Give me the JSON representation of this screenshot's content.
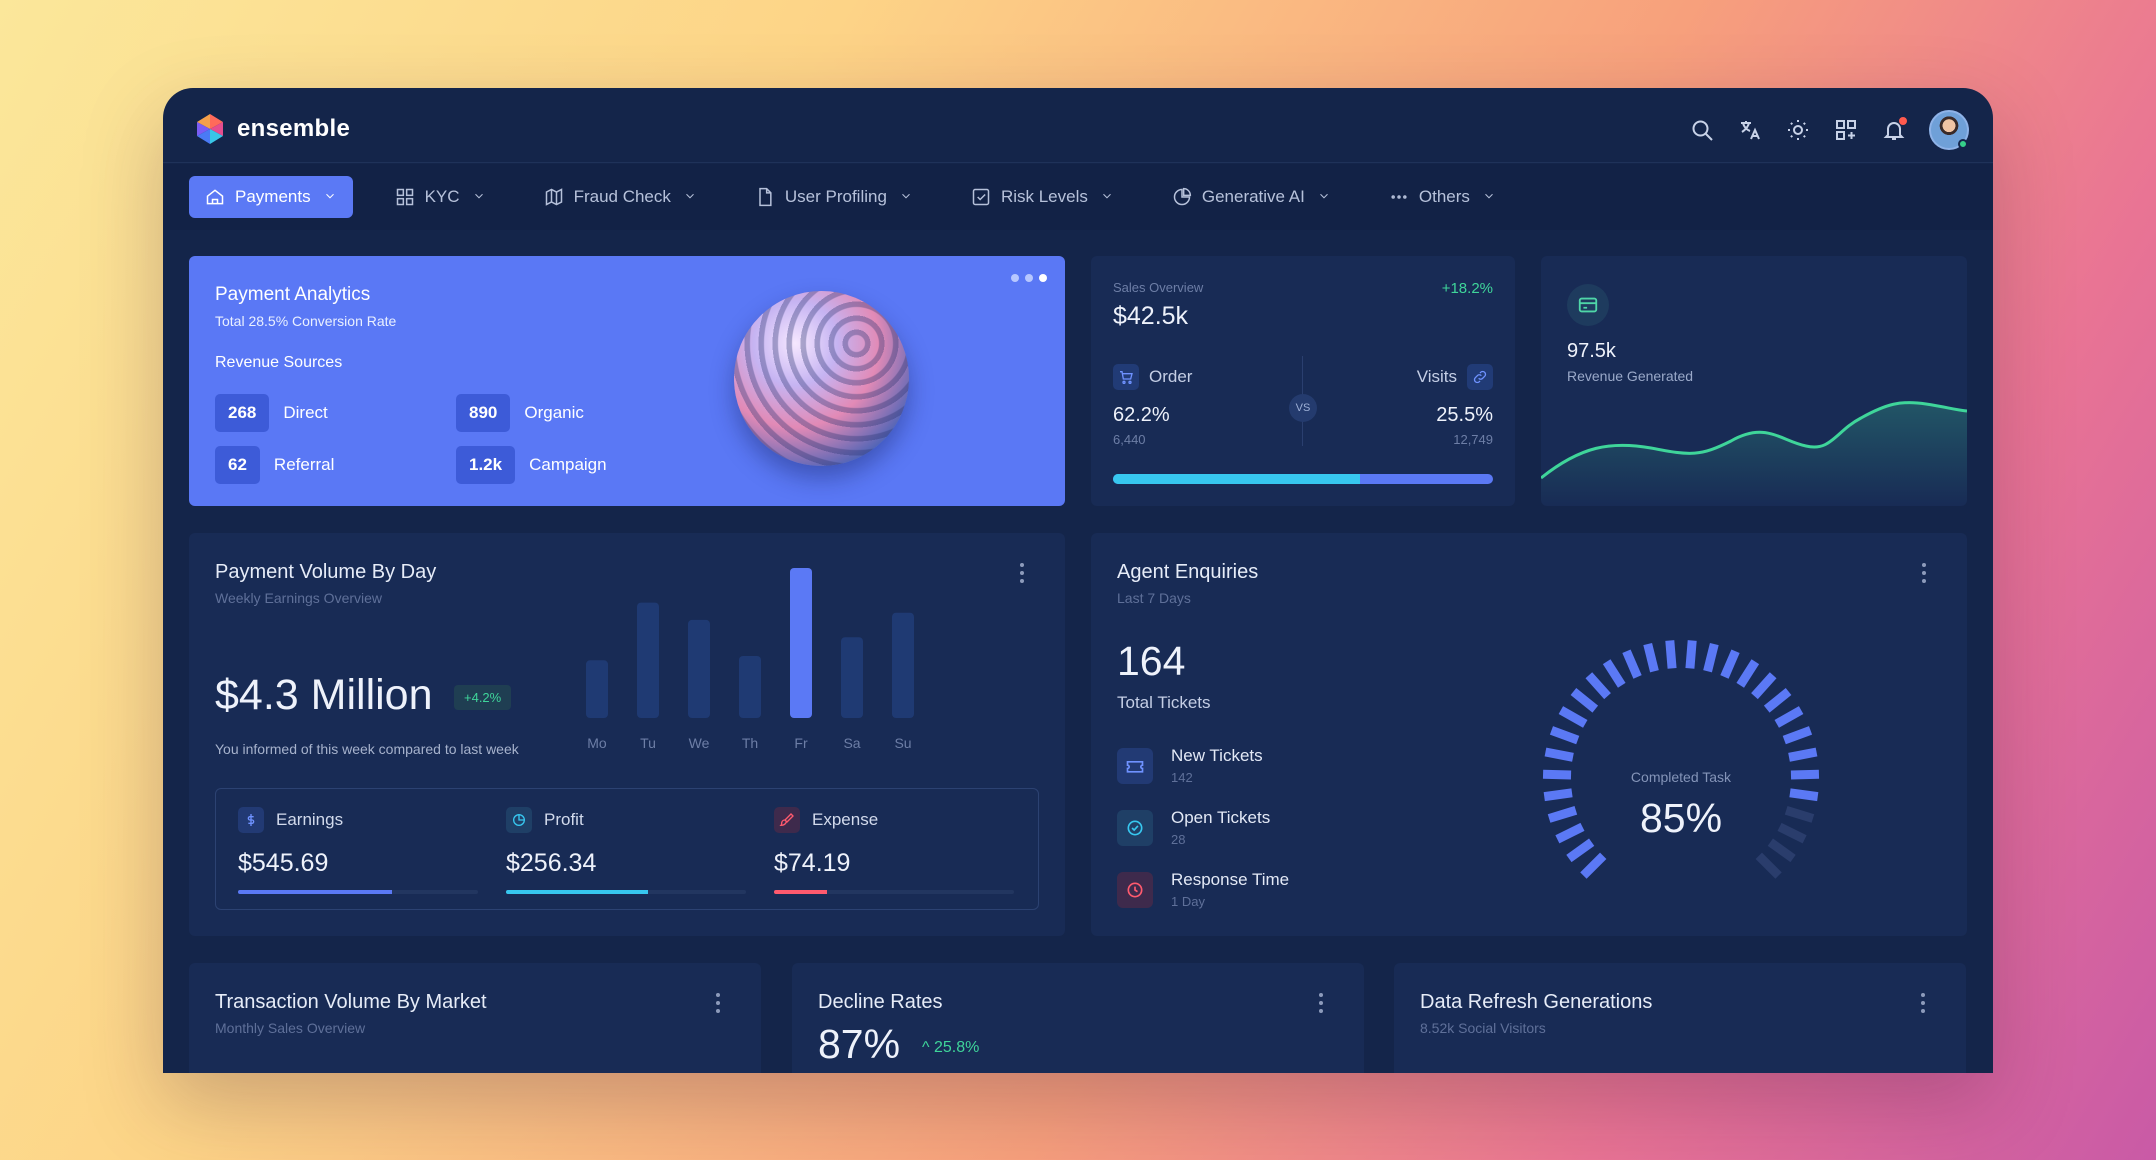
{
  "app": {
    "name": "ensemble",
    "colors": {
      "accent": "#5b79f5",
      "background": "#14254a",
      "card": "#182b55",
      "success": "#3fd59a",
      "danger": "#ff5a6e",
      "cyan": "#37c7ef"
    }
  },
  "topbar": {
    "icons": [
      "search-icon",
      "translate-icon",
      "sun-icon",
      "apps-grid-icon",
      "bell-icon",
      "user-avatar"
    ]
  },
  "nav": {
    "items": [
      {
        "label": "Payments",
        "icon": "home-icon",
        "active": true
      },
      {
        "label": "KYC",
        "icon": "grid-icon",
        "active": false
      },
      {
        "label": "Fraud Check",
        "icon": "map-icon",
        "active": false
      },
      {
        "label": "User Profiling",
        "icon": "file-icon",
        "active": false
      },
      {
        "label": "Risk Levels",
        "icon": "checkbox-icon",
        "active": false
      },
      {
        "label": "Generative AI",
        "icon": "pie-chart-icon",
        "active": false
      },
      {
        "label": "Others",
        "icon": "dots-icon",
        "active": false
      }
    ]
  },
  "payment_analytics": {
    "title": "Payment Analytics",
    "subtitle": "Total 28.5% Conversion Rate",
    "sources_title": "Revenue Sources",
    "sources": [
      {
        "value": "268",
        "label": "Direct"
      },
      {
        "value": "890",
        "label": "Organic"
      },
      {
        "value": "62",
        "label": "Referral"
      },
      {
        "value": "1.2k",
        "label": "Campaign"
      }
    ],
    "carousel_active_index": 2
  },
  "sales_overview": {
    "label": "Sales Overview",
    "value": "$42.5k",
    "change": "+18.2%",
    "order": {
      "label": "Order",
      "percent": "62.2%",
      "count": "6,440"
    },
    "visits": {
      "label": "Visits",
      "percent": "25.5%",
      "count": "12,749"
    },
    "vs": "VS",
    "order_share": 0.65
  },
  "revenue": {
    "value": "97.5k",
    "label": "Revenue Generated"
  },
  "payment_volume": {
    "title": "Payment Volume By Day",
    "subtitle": "Weekly Earnings Overview",
    "amount": "$4.3 Million",
    "change": "+4.2%",
    "note": "You informed of this week compared to last week",
    "chart_data": {
      "type": "bar",
      "categories": [
        "Mo",
        "Tu",
        "We",
        "Th",
        "Fr",
        "Sa",
        "Su"
      ],
      "values": [
        40,
        80,
        68,
        43,
        104,
        56,
        73
      ],
      "highlight": "Fr"
    },
    "stats": [
      {
        "label": "Earnings",
        "value": "$545.69",
        "icon": "dollar-icon",
        "progress": 0.64,
        "color": "#5b79f5"
      },
      {
        "label": "Profit",
        "value": "$256.34",
        "icon": "pie-icon",
        "progress": 0.59,
        "color": "#37c7ef"
      },
      {
        "label": "Expense",
        "value": "$74.19",
        "icon": "brush-icon",
        "progress": 0.22,
        "color": "#ff5a6e"
      }
    ]
  },
  "agent_enquiries": {
    "title": "Agent Enquiries",
    "subtitle": "Last 7 Days",
    "total": "164",
    "total_label": "Total Tickets",
    "items": [
      {
        "label": "New Tickets",
        "sub": "142",
        "icon": "ticket-icon",
        "color": "#5b79f5"
      },
      {
        "label": "Open Tickets",
        "sub": "28",
        "icon": "check-circle-icon",
        "color": "#37c7ef"
      },
      {
        "label": "Response Time",
        "sub": "1 Day",
        "icon": "clock-icon",
        "color": "#ff5a6e"
      }
    ],
    "gauge": {
      "label": "Completed Task",
      "value": "85%",
      "fraction": 0.85
    }
  },
  "transaction_volume": {
    "title": "Transaction Volume By Market",
    "subtitle": "Monthly Sales Overview"
  },
  "decline_rates": {
    "title": "Decline Rates",
    "value": "87%",
    "change": "25.8%"
  },
  "data_refresh": {
    "title": "Data Refresh Generations",
    "subtitle": "8.52k Social Visitors"
  }
}
